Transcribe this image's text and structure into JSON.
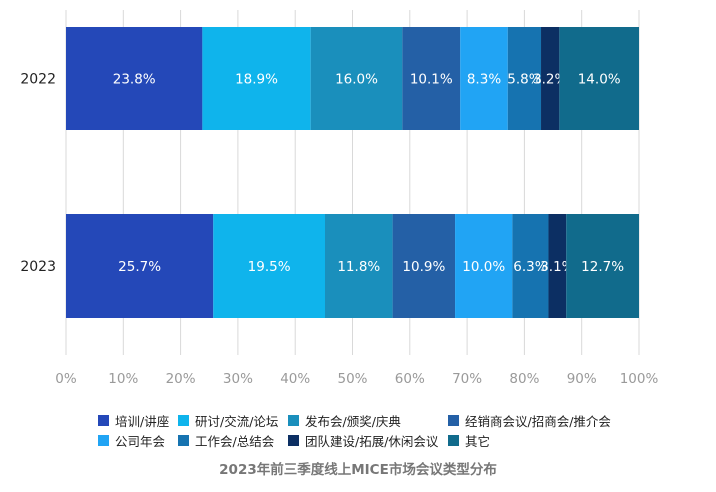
{
  "chart_data": {
    "type": "bar",
    "orientation": "horizontal",
    "stacked": true,
    "percent_stacked": true,
    "categories": [
      "2022",
      "2023"
    ],
    "series": [
      {
        "name": "培训/讲座",
        "color": "#2448b8",
        "values": [
          23.8,
          25.7
        ]
      },
      {
        "name": "研讨/交流/论坛",
        "color": "#0fb4ec",
        "values": [
          18.9,
          19.5
        ]
      },
      {
        "name": "发布会/颁奖/庆典",
        "color": "#1a8fbc",
        "values": [
          16.0,
          11.8
        ]
      },
      {
        "name": "经销商会议/招商会/推介会",
        "color": "#2460a6",
        "values": [
          10.1,
          10.9
        ]
      },
      {
        "name": "公司年会",
        "color": "#21a4f4",
        "values": [
          8.3,
          10.0
        ]
      },
      {
        "name": "工作会/总结会",
        "color": "#1673b0",
        "values": [
          5.8,
          6.3
        ]
      },
      {
        "name": "团队建设/拓展/休闲会议",
        "color": "#0c2f63",
        "values": [
          3.2,
          3.1
        ]
      },
      {
        "name": "其它",
        "color": "#116b8c",
        "values": [
          14.0,
          12.7
        ]
      }
    ],
    "data_labels": [
      [
        "23.8%",
        "18.9%",
        "16.0%",
        "10.1%",
        "8.3%",
        "5.8%",
        "3.2%",
        "14.0%"
      ],
      [
        "25.7%",
        "19.5%",
        "11.8%",
        "10.9%",
        "10.0%",
        "6.3%",
        "3.1%",
        "12.7%"
      ]
    ],
    "xlim": [
      0,
      100
    ],
    "x_ticks": [
      "0%",
      "10%",
      "20%",
      "30%",
      "40%",
      "50%",
      "60%",
      "70%",
      "80%",
      "90%",
      "100%"
    ],
    "grid": true,
    "legend_position": "bottom",
    "title": "2023年前三季度线上MICE市场会议类型分布"
  }
}
